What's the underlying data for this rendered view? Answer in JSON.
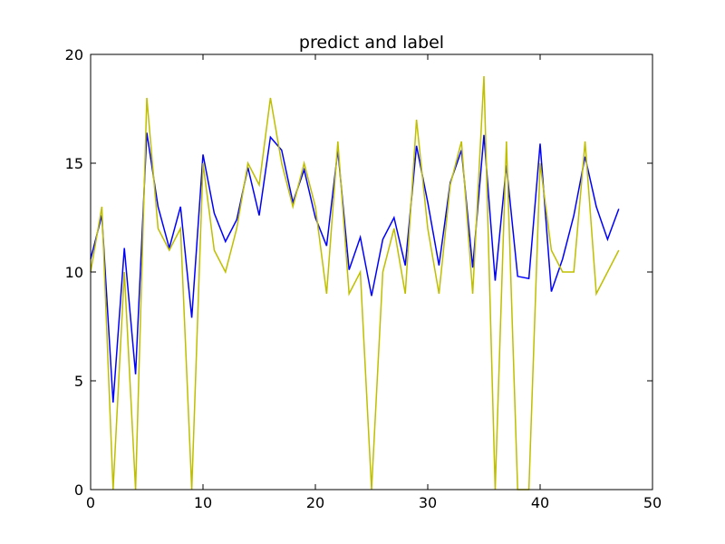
{
  "chart_data": {
    "type": "line",
    "title": "predict and label",
    "xlabel": "",
    "ylabel": "",
    "xlim": [
      0,
      50
    ],
    "ylim": [
      0,
      20
    ],
    "xticks": [
      0,
      10,
      20,
      30,
      40,
      50
    ],
    "yticks": [
      0,
      5,
      10,
      15,
      20
    ],
    "grid": false,
    "x": [
      0,
      1,
      2,
      3,
      4,
      5,
      6,
      7,
      8,
      9,
      10,
      11,
      12,
      13,
      14,
      15,
      16,
      17,
      18,
      19,
      20,
      21,
      22,
      23,
      24,
      25,
      26,
      27,
      28,
      29,
      30,
      31,
      32,
      33,
      34,
      35,
      36,
      37,
      38,
      39,
      40,
      41,
      42,
      43,
      44,
      45,
      46,
      47
    ],
    "series": [
      {
        "color": "#0000ff",
        "values": [
          10.6,
          12.6,
          4.0,
          11.1,
          5.3,
          16.4,
          13.0,
          11.1,
          13.0,
          7.9,
          15.4,
          12.7,
          11.4,
          12.4,
          14.8,
          12.6,
          16.2,
          15.6,
          13.2,
          14.7,
          12.5,
          11.2,
          15.6,
          10.1,
          11.6,
          8.9,
          11.5,
          12.5,
          10.3,
          15.8,
          13.2,
          10.3,
          14.1,
          15.6,
          10.2,
          16.3,
          9.6,
          14.9,
          9.8,
          9.7,
          15.9,
          9.1,
          10.6,
          12.6,
          15.3,
          13.0,
          11.5,
          12.9
        ]
      },
      {
        "color": "#bfbf00",
        "values": [
          10.0,
          13.0,
          0.0,
          10.0,
          0.0,
          18.0,
          12.0,
          11.0,
          12.0,
          0.0,
          15.0,
          11.0,
          10.0,
          12.0,
          15.0,
          14.0,
          18.0,
          15.0,
          13.0,
          15.0,
          13.0,
          9.0,
          16.0,
          9.0,
          10.0,
          0.0,
          10.0,
          12.0,
          9.0,
          17.0,
          12.0,
          9.0,
          14.0,
          16.0,
          9.0,
          19.0,
          0.0,
          16.0,
          0.0,
          0.0,
          15.0,
          11.0,
          10.0,
          10.0,
          16.0,
          9.0,
          10.0,
          11.0
        ]
      }
    ]
  }
}
